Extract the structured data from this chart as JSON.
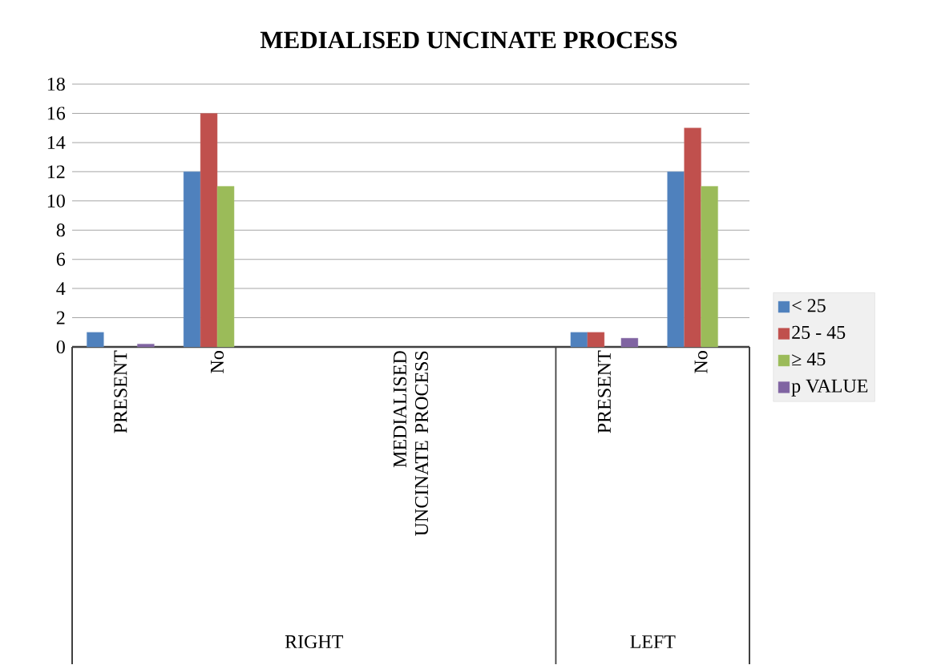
{
  "chart_data": {
    "type": "bar",
    "title": "MEDIALISED UNCINATE PROCESS",
    "categories": [
      "PRESENT",
      "No",
      null,
      "MEDIALISED UNCINATE PROCESS",
      null,
      "PRESENT",
      "No"
    ],
    "series": [
      {
        "name": "< 25",
        "color": "#4f81bd",
        "values": [
          1,
          12,
          null,
          null,
          null,
          1,
          12
        ]
      },
      {
        "name": "25 - 45",
        "color": "#c0504d",
        "values": [
          null,
          16,
          null,
          null,
          null,
          1,
          15
        ]
      },
      {
        "name": "≥ 45",
        "color": "#9bbb59",
        "values": [
          null,
          11,
          null,
          null,
          null,
          null,
          11
        ]
      },
      {
        "name": "p VALUE",
        "color": "#8064a2",
        "values": [
          0.2,
          null,
          null,
          null,
          null,
          0.6,
          null
        ]
      }
    ],
    "ylim": [
      0,
      18
    ],
    "yticks": [
      0,
      2,
      4,
      6,
      8,
      10,
      12,
      14,
      16,
      18
    ],
    "grid": "y",
    "legend": "right",
    "annotations": [
      "RIGHT",
      "LEFT"
    ]
  }
}
